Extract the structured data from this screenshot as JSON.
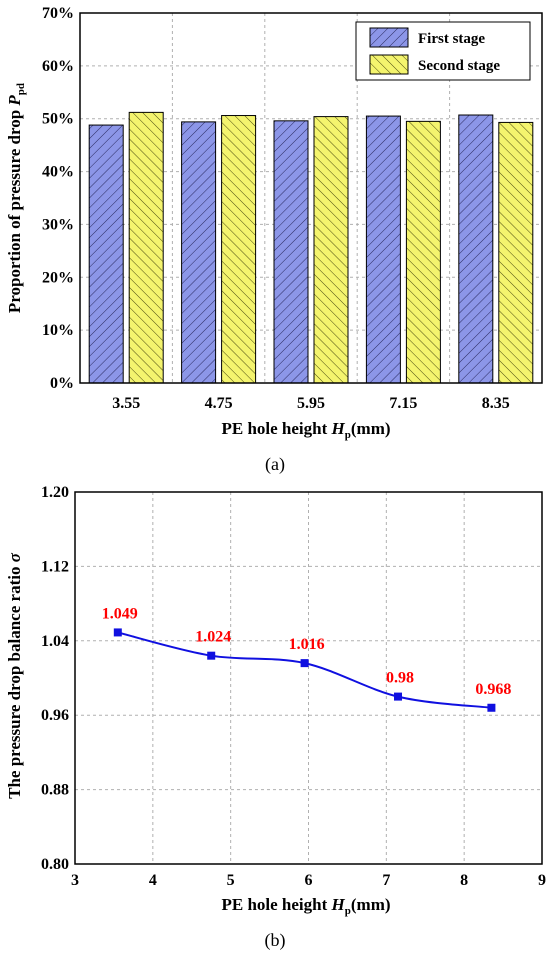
{
  "chart_data": [
    {
      "type": "bar",
      "panel_label": "(a)",
      "categories": [
        "3.55",
        "4.75",
        "5.95",
        "7.15",
        "8.35"
      ],
      "series": [
        {
          "name": "First stage",
          "values": [
            48.8,
            49.4,
            49.6,
            50.5,
            50.7
          ],
          "color": "#8c96e8",
          "pattern": "hatch-forward"
        },
        {
          "name": "Second stage",
          "values": [
            51.2,
            50.6,
            50.4,
            49.5,
            49.3
          ],
          "color": "#f4f46e",
          "pattern": "hatch-backward"
        }
      ],
      "ylim": [
        0,
        70
      ],
      "yticks": [
        "0%",
        "10%",
        "20%",
        "30%",
        "40%",
        "50%",
        "60%",
        "70%"
      ],
      "ylabel": "Proportion of pressure drop",
      "ylabel_symbol": "P",
      "ylabel_sub": "pd",
      "xlabel": "PE hole height",
      "xlabel_symbol": "H",
      "xlabel_sub": "p",
      "xlabel_unit": "(mm)",
      "legend_position": "top-right",
      "grid": true
    },
    {
      "type": "line",
      "panel_label": "(b)",
      "x": [
        3.55,
        4.75,
        5.95,
        7.15,
        8.35
      ],
      "y": [
        1.049,
        1.024,
        1.016,
        0.98,
        0.968
      ],
      "data_labels": [
        "1.049",
        "1.024",
        "1.016",
        "0.98",
        "0.968"
      ],
      "xlim": [
        3,
        9
      ],
      "ylim": [
        0.8,
        1.2
      ],
      "xticks": [
        "3",
        "4",
        "5",
        "6",
        "7",
        "8",
        "9"
      ],
      "yticks": [
        "0.80",
        "0.88",
        "0.96",
        "1.04",
        "1.12",
        "1.20"
      ],
      "ylabel": "The pressure drop balance ratio",
      "ylabel_symbol": "σ",
      "xlabel": "PE hole height",
      "xlabel_symbol": "H",
      "xlabel_sub": "p",
      "xlabel_unit": "(mm)",
      "line_color": "#1010e0",
      "label_color": "#ff0000",
      "grid": true
    }
  ]
}
